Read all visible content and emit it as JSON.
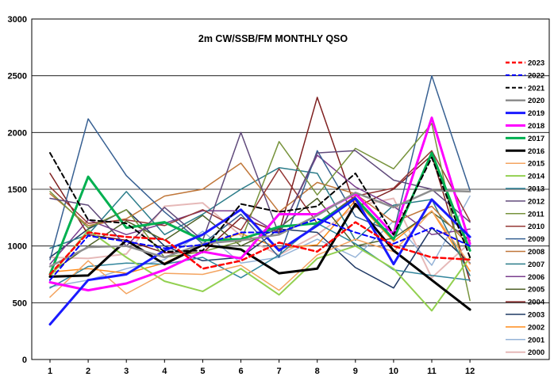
{
  "chart_data": {
    "type": "line",
    "title": "2m CW/SSB/FM  MONTHLY QSO",
    "xlabel": "",
    "ylabel": "",
    "categories": [
      "1",
      "2",
      "3",
      "4",
      "5",
      "6",
      "7",
      "8",
      "9",
      "10",
      "11",
      "12"
    ],
    "ylim": [
      0,
      3000
    ],
    "yticks": [
      0,
      500,
      1000,
      1500,
      2000,
      2500,
      3000
    ],
    "grid": true,
    "legend_position": "right",
    "series": [
      {
        "name": "2023",
        "color": "#ff0000",
        "style": "dashed",
        "width": 2.5,
        "values": [
          750,
          1120,
          1080,
          1060,
          800,
          870,
          1030,
          950,
          1210,
          1000,
          900,
          880
        ]
      },
      {
        "name": "2022",
        "color": "#0000ff",
        "style": "dashed",
        "width": 2,
        "values": [
          700,
          1090,
          1040,
          980,
          1010,
          1120,
          1120,
          1240,
          1120,
          1020,
          1160,
          1000
        ]
      },
      {
        "name": "2021",
        "color": "#000000",
        "style": "dashed",
        "width": 2,
        "values": [
          1820,
          1230,
          1200,
          950,
          960,
          1370,
          1300,
          1350,
          1640,
          1100,
          1780,
          900
        ]
      },
      {
        "name": "2020",
        "color": "#8e8e8e",
        "style": "solid",
        "width": 2.5,
        "values": [
          820,
          990,
          1000,
          900,
          1020,
          1050,
          1100,
          1270,
          1470,
          1340,
          1490,
          1480
        ]
      },
      {
        "name": "2019",
        "color": "#1a1aff",
        "style": "solid",
        "width": 3,
        "values": [
          310,
          700,
          750,
          960,
          1100,
          1320,
          960,
          1180,
          1420,
          840,
          1410,
          1080
        ]
      },
      {
        "name": "2018",
        "color": "#ff00ff",
        "style": "solid",
        "width": 3,
        "values": [
          680,
          610,
          670,
          790,
          950,
          890,
          1280,
          1280,
          1460,
          1100,
          2130,
          1020
        ]
      },
      {
        "name": "2017",
        "color": "#00b050",
        "style": "solid",
        "width": 3,
        "values": [
          750,
          1610,
          1160,
          1210,
          1050,
          1060,
          1170,
          1200,
          1420,
          1060,
          1820,
          960
        ]
      },
      {
        "name": "2016",
        "color": "#000000",
        "style": "solid",
        "width": 3,
        "values": [
          730,
          740,
          1050,
          840,
          1010,
          970,
          760,
          800,
          1370,
          960,
          700,
          440
        ]
      },
      {
        "name": "2015",
        "color": "#f4a460",
        "style": "solid",
        "width": 1.5,
        "values": [
          550,
          870,
          580,
          760,
          750,
          830,
          610,
          920,
          1060,
          950,
          1310,
          840
        ]
      },
      {
        "name": "2014",
        "color": "#92d050",
        "style": "solid",
        "width": 2,
        "values": [
          730,
          1140,
          900,
          690,
          600,
          800,
          570,
          890,
          1000,
          800,
          430,
          900
        ]
      },
      {
        "name": "2013",
        "color": "#31859c",
        "style": "solid",
        "width": 1.5,
        "values": [
          630,
          820,
          850,
          840,
          900,
          720,
          920,
          1200,
          1020,
          790,
          740,
          700
        ]
      },
      {
        "name": "2012",
        "color": "#604a7b",
        "style": "solid",
        "width": 1.5,
        "values": [
          1420,
          1360,
          1000,
          1340,
          1050,
          2000,
          1100,
          1820,
          1840,
          1580,
          1500,
          1210
        ]
      },
      {
        "name": "2011",
        "color": "#77933c",
        "style": "solid",
        "width": 1.5,
        "values": [
          1480,
          1160,
          1320,
          900,
          950,
          1040,
          1920,
          1450,
          1860,
          1680,
          2080,
          520
        ]
      },
      {
        "name": "2010",
        "color": "#953735",
        "style": "solid",
        "width": 1.5,
        "values": [
          1520,
          1200,
          1230,
          1180,
          1320,
          1140,
          1680,
          1200,
          1440,
          1510,
          1840,
          1220
        ]
      },
      {
        "name": "2009",
        "color": "#376092",
        "style": "solid",
        "width": 1.5,
        "values": [
          880,
          2120,
          1620,
          1300,
          1020,
          1280,
          900,
          1840,
          1260,
          1120,
          2500,
          1490
        ]
      },
      {
        "name": "2008",
        "color": "#c0773a",
        "style": "solid",
        "width": 1.5,
        "values": [
          1460,
          1180,
          1240,
          1440,
          1500,
          1730,
          1300,
          1560,
          1460,
          1210,
          1350,
          1000
        ]
      },
      {
        "name": "2007",
        "color": "#2c7d8a",
        "style": "solid",
        "width": 1.5,
        "values": [
          980,
          1100,
          1480,
          1100,
          1280,
          1500,
          1690,
          1640,
          1050,
          1360,
          1410,
          740
        ]
      },
      {
        "name": "2006",
        "color": "#7a3e8e",
        "style": "solid",
        "width": 1.5,
        "values": [
          840,
          1230,
          1100,
          1200,
          1310,
          1310,
          1110,
          1800,
          1520,
          1350,
          1100,
          1150
        ]
      },
      {
        "name": "2005",
        "color": "#4f6228",
        "style": "solid",
        "width": 1.5,
        "values": [
          760,
          1000,
          1220,
          1050,
          1270,
          1000,
          1160,
          1420,
          1000,
          1070,
          1300,
          1050
        ]
      },
      {
        "name": "2004",
        "color": "#7f2020",
        "style": "solid",
        "width": 1.5,
        "values": [
          1640,
          1100,
          1050,
          940,
          940,
          1250,
          1120,
          2310,
          1340,
          1500,
          1800,
          690
        ]
      },
      {
        "name": "2003",
        "color": "#1f3864",
        "style": "solid",
        "width": 1.5,
        "values": [
          900,
          1150,
          1320,
          1000,
          870,
          900,
          1150,
          1120,
          810,
          630,
          1160,
          850
        ]
      },
      {
        "name": "2002",
        "color": "#ff8c1a",
        "style": "solid",
        "width": 1.5,
        "values": [
          770,
          800,
          760,
          850,
          1010,
          1110,
          980,
          1010,
          1400,
          1040,
          1310,
          780
        ]
      },
      {
        "name": "2001",
        "color": "#95b3d7",
        "style": "solid",
        "width": 1.5,
        "values": [
          640,
          700,
          800,
          880,
          1130,
          850,
          900,
          1060,
          900,
          1220,
          830,
          1440
        ]
      },
      {
        "name": "2000",
        "color": "#e6b9b8",
        "style": "solid",
        "width": 2,
        "values": [
          900,
          890,
          930,
          1350,
          1380,
          1090,
          920,
          1100,
          1350,
          1420,
          720,
          1030
        ]
      }
    ]
  }
}
